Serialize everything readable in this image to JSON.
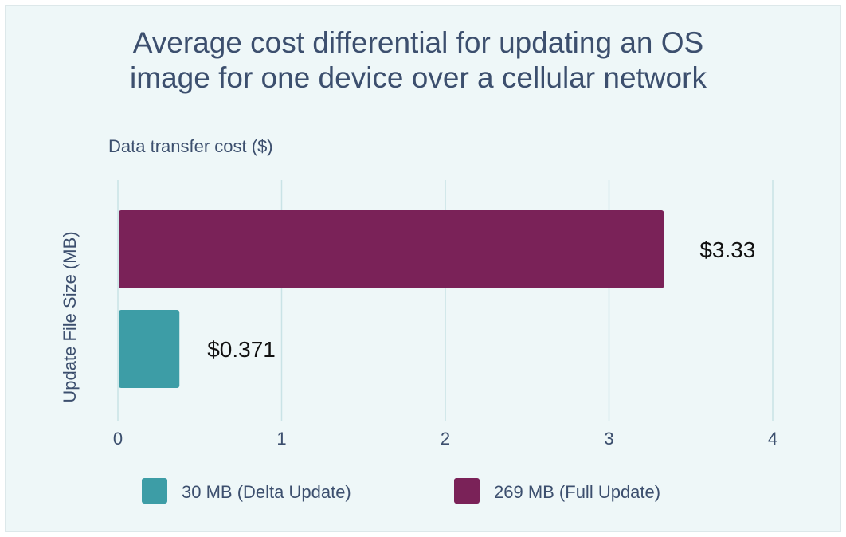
{
  "chart_data": {
    "type": "bar",
    "orientation": "horizontal",
    "title": [
      "Average cost differential for updating an OS",
      "image for one device over a cellular network"
    ],
    "xlabel": "Data transfer cost ($)",
    "ylabel": "Update File Size (MB)",
    "xlim": [
      0,
      4
    ],
    "xticks": [
      "0",
      "1",
      "2",
      "3",
      "4"
    ],
    "grid": true,
    "legend_position": "bottom",
    "series": [
      {
        "name": "30 MB (Delta Update)",
        "value": 0.371,
        "label": "$0.371",
        "color": "#3d9da6"
      },
      {
        "name": "269 MB (Full Update)",
        "value": 3.33,
        "label": "$3.33",
        "color": "#7a2258"
      }
    ]
  }
}
